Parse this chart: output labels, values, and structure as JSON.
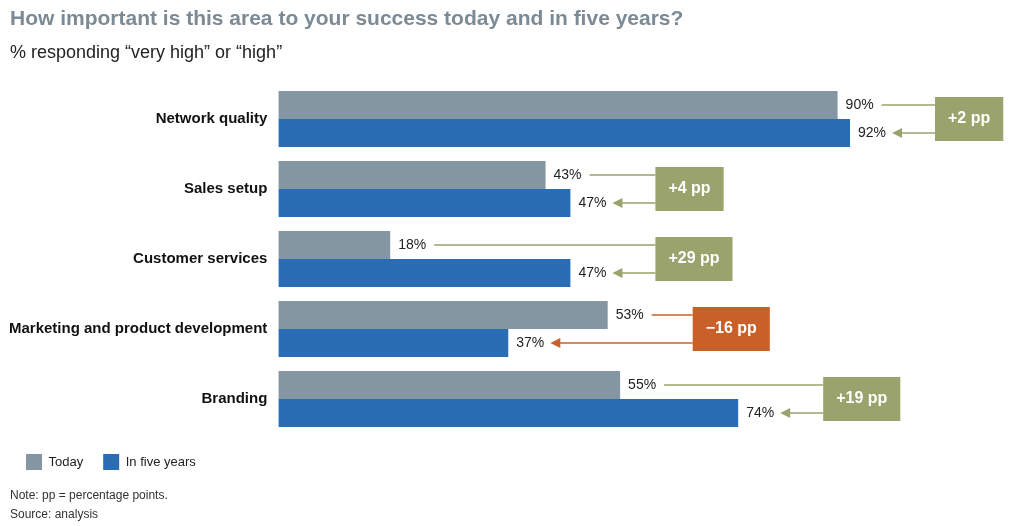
{
  "chart_data": {
    "type": "bar",
    "orientation": "horizontal",
    "tick_labels": "y",
    "title": "How important is this area to your success today and in five years?",
    "subtitle": "% responding “very high” or “high”",
    "categories": [
      "Network quality",
      "Sales setup",
      "Customer services",
      "Marketing and product development",
      "Branding"
    ],
    "series": [
      {
        "name": "Today",
        "color": "#8496a1",
        "values": [
          90,
          43,
          18,
          53,
          55
        ],
        "value_labels": [
          "90%",
          "43%",
          "18%",
          "53%",
          "55%"
        ]
      },
      {
        "name": "In five years",
        "color": "#2b6db5",
        "values": [
          92,
          47,
          47,
          37,
          74
        ],
        "value_labels": [
          "92%",
          "47%",
          "47%",
          "37%",
          "74%"
        ]
      }
    ],
    "annotations": [
      "+2 pp",
      "+4 pp",
      "+29 pp",
      "−16 pp",
      "+19 pp",
      "Note: pp = percentage points.",
      "Source: analysis"
    ],
    "legend": "bottom"
  }
}
